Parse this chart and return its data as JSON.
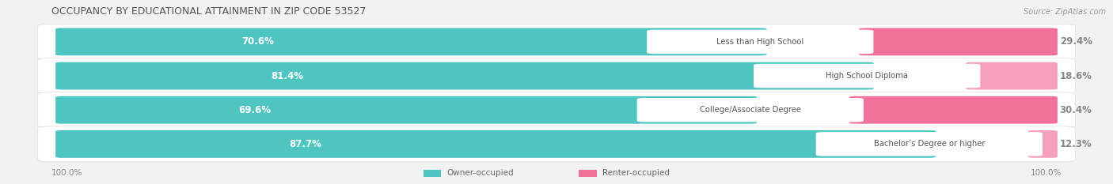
{
  "title": "OCCUPANCY BY EDUCATIONAL ATTAINMENT IN ZIP CODE 53527",
  "source": "Source: ZipAtlas.com",
  "categories": [
    "Less than High School",
    "High School Diploma",
    "College/Associate Degree",
    "Bachelor’s Degree or higher"
  ],
  "owner_pct": [
    70.6,
    81.4,
    69.6,
    87.7
  ],
  "renter_pct": [
    29.4,
    18.6,
    30.4,
    12.3
  ],
  "owner_color": "#4EC5C1",
  "renter_color": "#F0719A",
  "renter_color_light": "#F5A0BC",
  "bg_color": "#f2f2f2",
  "row_bg": "#e8e8ee",
  "title_color": "#555555",
  "source_color": "#999999",
  "pct_label_color_owner": "#ffffff",
  "pct_label_color_renter": "#888888",
  "cat_label_color": "#555555",
  "legend_color": "#666666",
  "legend_owner": "Owner-occupied",
  "legend_renter": "Renter-occupied"
}
